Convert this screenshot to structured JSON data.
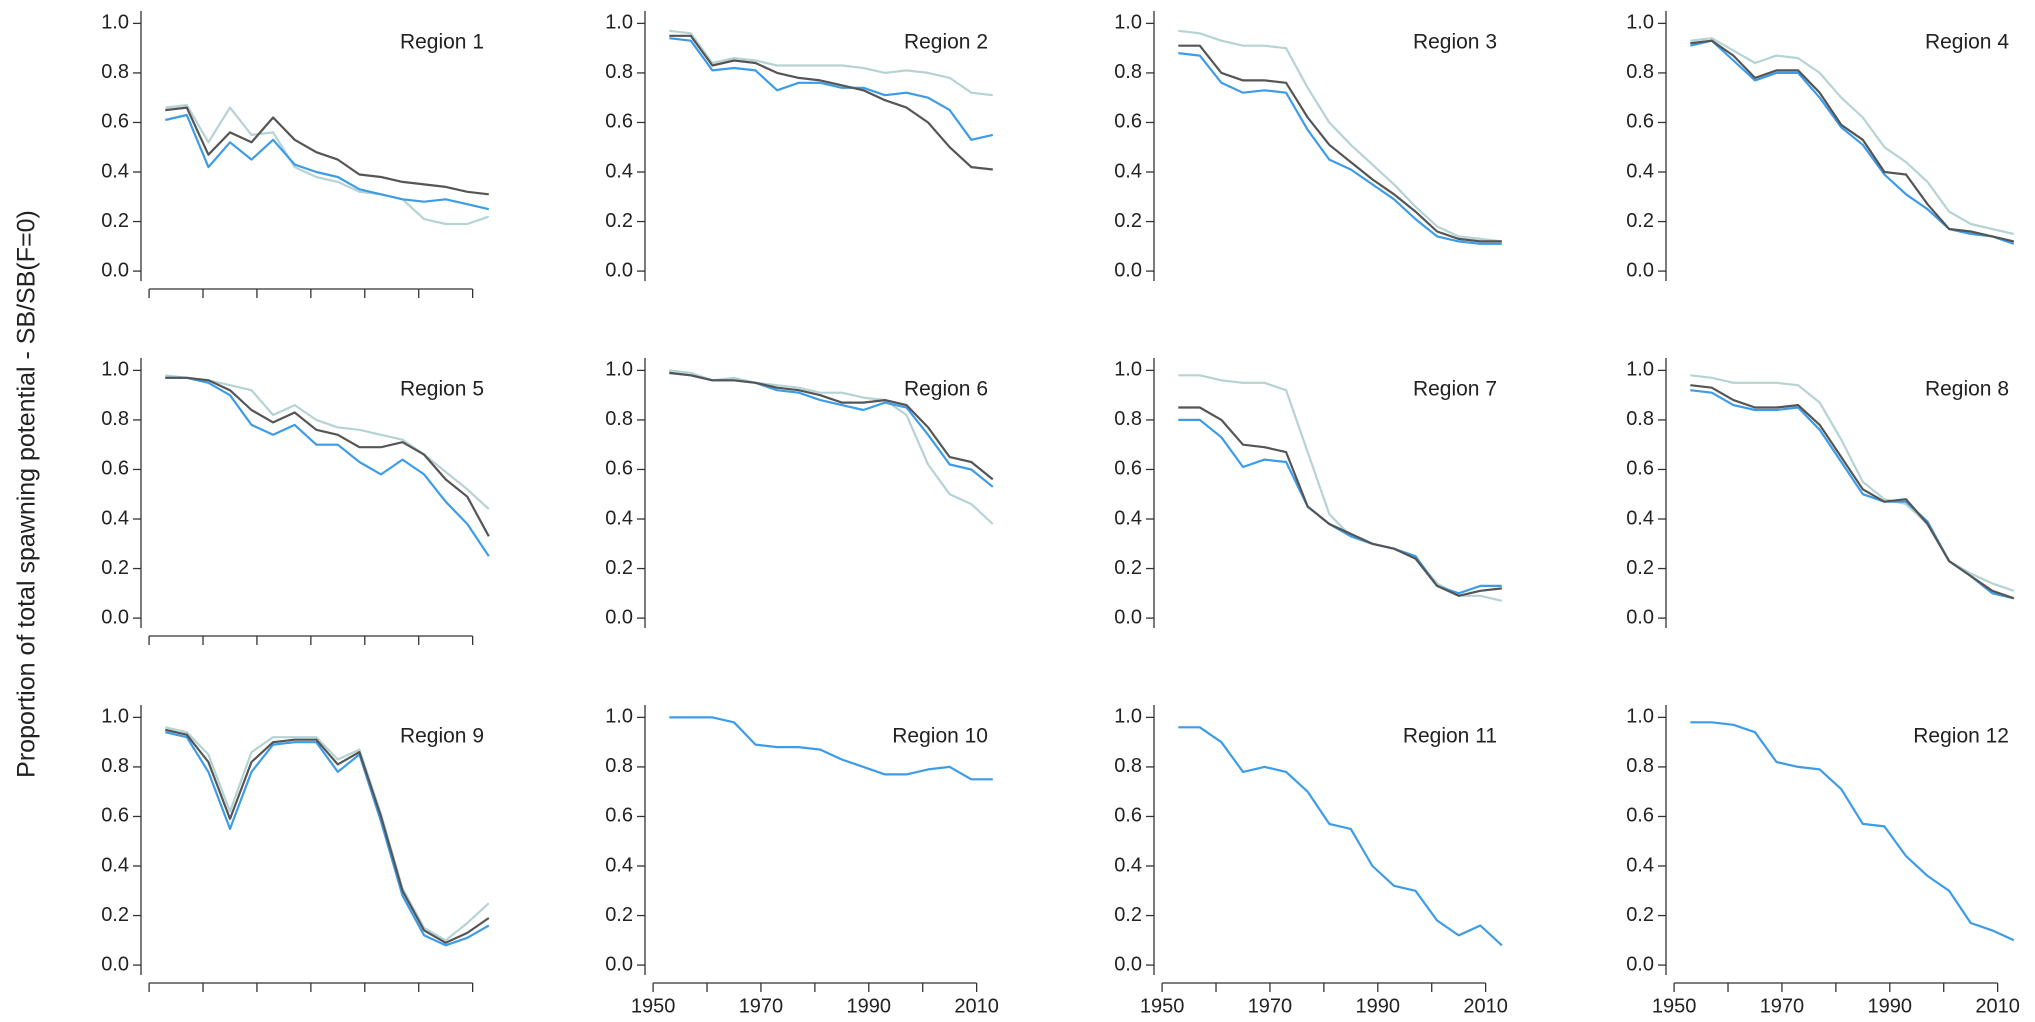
{
  "ylabel": "Proportion of total spawning potential - SB/SB(F=0)",
  "chart_data": [
    {
      "type": "line",
      "title": "Region 1",
      "x": [
        1953,
        1957,
        1961,
        1965,
        1969,
        1973,
        1977,
        1981,
        1985,
        1989,
        1993,
        1997,
        2001,
        2005,
        2009,
        2013
      ],
      "xlim": [
        1948.5,
        2016
      ],
      "ylim": [
        -0.04,
        1.05
      ],
      "yticks": [
        {
          "value": 0,
          "label": "0.0"
        },
        0.2,
        0.4,
        0.6,
        0.8,
        {
          "value": 1,
          "label": "1.0"
        }
      ],
      "xminor_ticks": [
        1950,
        1960,
        1970,
        1980,
        1990,
        2000,
        2010
      ],
      "series": [
        {
          "color": "#b6d3d3",
          "values": [
            0.66,
            0.67,
            0.52,
            0.66,
            0.55,
            0.56,
            0.42,
            0.38,
            0.36,
            0.32,
            0.31,
            0.29,
            0.21,
            0.19,
            0.19,
            0.22
          ]
        },
        {
          "color": "#3d9ce8",
          "values": [
            0.61,
            0.63,
            0.42,
            0.52,
            0.45,
            0.53,
            0.43,
            0.4,
            0.38,
            0.33,
            0.31,
            0.29,
            0.28,
            0.29,
            0.27,
            0.25
          ]
        },
        {
          "color": "#555555",
          "values": [
            0.65,
            0.66,
            0.47,
            0.56,
            0.52,
            0.62,
            0.53,
            0.48,
            0.45,
            0.39,
            0.38,
            0.36,
            0.35,
            0.34,
            0.32,
            0.31
          ]
        }
      ]
    },
    {
      "type": "line",
      "title": "Region 2",
      "x": [
        1953,
        1957,
        1961,
        1965,
        1969,
        1973,
        1977,
        1981,
        1985,
        1989,
        1993,
        1997,
        2001,
        2005,
        2009,
        2013
      ],
      "xlim": [
        1948.5,
        2016
      ],
      "ylim": [
        -0.04,
        1.05
      ],
      "yticks": [
        {
          "value": 0,
          "label": "0.0"
        },
        0.2,
        0.4,
        0.6,
        0.8,
        {
          "value": 1,
          "label": "1.0"
        }
      ],
      "series": [
        {
          "color": "#b6d3d3",
          "values": [
            0.97,
            0.96,
            0.84,
            0.86,
            0.85,
            0.83,
            0.83,
            0.83,
            0.83,
            0.82,
            0.8,
            0.81,
            0.8,
            0.78,
            0.72,
            0.71
          ]
        },
        {
          "color": "#3d9ce8",
          "values": [
            0.94,
            0.93,
            0.81,
            0.82,
            0.81,
            0.73,
            0.76,
            0.76,
            0.74,
            0.74,
            0.71,
            0.72,
            0.7,
            0.65,
            0.53,
            0.55
          ]
        },
        {
          "color": "#555555",
          "values": [
            0.95,
            0.95,
            0.83,
            0.85,
            0.84,
            0.8,
            0.78,
            0.77,
            0.75,
            0.73,
            0.69,
            0.66,
            0.6,
            0.5,
            0.42,
            0.41
          ]
        }
      ]
    },
    {
      "type": "line",
      "title": "Region 3",
      "x": [
        1953,
        1957,
        1961,
        1965,
        1969,
        1973,
        1977,
        1981,
        1985,
        1989,
        1993,
        1997,
        2001,
        2005,
        2009,
        2013
      ],
      "xlim": [
        1948.5,
        2016
      ],
      "ylim": [
        -0.04,
        1.05
      ],
      "yticks": [
        {
          "value": 0,
          "label": "0.0"
        },
        0.2,
        0.4,
        0.6,
        0.8,
        {
          "value": 1,
          "label": "1.0"
        }
      ],
      "series": [
        {
          "color": "#b6d3d3",
          "values": [
            0.97,
            0.96,
            0.93,
            0.91,
            0.91,
            0.9,
            0.74,
            0.6,
            0.51,
            0.43,
            0.35,
            0.26,
            0.18,
            0.14,
            0.13,
            0.12
          ]
        },
        {
          "color": "#3d9ce8",
          "values": [
            0.88,
            0.87,
            0.76,
            0.72,
            0.73,
            0.72,
            0.57,
            0.45,
            0.41,
            0.35,
            0.29,
            0.21,
            0.14,
            0.12,
            0.11,
            0.11
          ]
        },
        {
          "color": "#555555",
          "values": [
            0.91,
            0.91,
            0.8,
            0.77,
            0.77,
            0.76,
            0.62,
            0.51,
            0.44,
            0.37,
            0.31,
            0.24,
            0.16,
            0.13,
            0.12,
            0.12
          ]
        }
      ]
    },
    {
      "type": "line",
      "title": "Region 4",
      "x": [
        1953,
        1957,
        1961,
        1965,
        1969,
        1973,
        1977,
        1981,
        1985,
        1989,
        1993,
        1997,
        2001,
        2005,
        2009,
        2013
      ],
      "xlim": [
        1948.5,
        2016
      ],
      "ylim": [
        -0.04,
        1.05
      ],
      "yticks": [
        {
          "value": 0,
          "label": "0.0"
        },
        0.2,
        0.4,
        0.6,
        0.8,
        {
          "value": 1,
          "label": "1.0"
        }
      ],
      "series": [
        {
          "color": "#b6d3d3",
          "values": [
            0.93,
            0.94,
            0.89,
            0.84,
            0.87,
            0.86,
            0.8,
            0.7,
            0.62,
            0.5,
            0.44,
            0.36,
            0.24,
            0.19,
            0.17,
            0.15
          ]
        },
        {
          "color": "#3d9ce8",
          "values": [
            0.91,
            0.93,
            0.85,
            0.77,
            0.8,
            0.8,
            0.7,
            0.58,
            0.51,
            0.39,
            0.31,
            0.25,
            0.17,
            0.15,
            0.14,
            0.11
          ]
        },
        {
          "color": "#555555",
          "values": [
            0.92,
            0.93,
            0.87,
            0.78,
            0.81,
            0.81,
            0.72,
            0.59,
            0.53,
            0.4,
            0.39,
            0.27,
            0.17,
            0.16,
            0.14,
            0.12
          ]
        }
      ]
    },
    {
      "type": "line",
      "title": "Region 5",
      "x": [
        1953,
        1957,
        1961,
        1965,
        1969,
        1973,
        1977,
        1981,
        1985,
        1989,
        1993,
        1997,
        2001,
        2005,
        2009,
        2013
      ],
      "xlim": [
        1948.5,
        2016
      ],
      "ylim": [
        -0.04,
        1.05
      ],
      "yticks": [
        {
          "value": 0,
          "label": "0.0"
        },
        0.2,
        0.4,
        0.6,
        0.8,
        {
          "value": 1,
          "label": "1.0"
        }
      ],
      "xminor_ticks": [
        1950,
        1960,
        1970,
        1980,
        1990,
        2000,
        2010
      ],
      "series": [
        {
          "color": "#b6d3d3",
          "values": [
            0.98,
            0.97,
            0.96,
            0.94,
            0.92,
            0.82,
            0.86,
            0.8,
            0.77,
            0.76,
            0.74,
            0.72,
            0.66,
            0.59,
            0.52,
            0.44
          ]
        },
        {
          "color": "#3d9ce8",
          "values": [
            0.97,
            0.97,
            0.95,
            0.9,
            0.78,
            0.74,
            0.78,
            0.7,
            0.7,
            0.63,
            0.58,
            0.64,
            0.58,
            0.47,
            0.38,
            0.25
          ]
        },
        {
          "color": "#555555",
          "values": [
            0.97,
            0.97,
            0.96,
            0.92,
            0.84,
            0.79,
            0.83,
            0.76,
            0.74,
            0.69,
            0.69,
            0.71,
            0.66,
            0.56,
            0.49,
            0.33
          ]
        }
      ]
    },
    {
      "type": "line",
      "title": "Region 6",
      "x": [
        1953,
        1957,
        1961,
        1965,
        1969,
        1973,
        1977,
        1981,
        1985,
        1989,
        1993,
        1997,
        2001,
        2005,
        2009,
        2013
      ],
      "xlim": [
        1948.5,
        2016
      ],
      "ylim": [
        -0.04,
        1.05
      ],
      "yticks": [
        {
          "value": 0,
          "label": "0.0"
        },
        0.2,
        0.4,
        0.6,
        0.8,
        {
          "value": 1,
          "label": "1.0"
        }
      ],
      "series": [
        {
          "color": "#b6d3d3",
          "values": [
            1.0,
            0.99,
            0.96,
            0.97,
            0.95,
            0.94,
            0.93,
            0.91,
            0.91,
            0.89,
            0.88,
            0.82,
            0.62,
            0.5,
            0.46,
            0.38
          ]
        },
        {
          "color": "#3d9ce8",
          "values": [
            0.99,
            0.98,
            0.96,
            0.96,
            0.95,
            0.92,
            0.91,
            0.88,
            0.86,
            0.84,
            0.87,
            0.85,
            0.74,
            0.62,
            0.6,
            0.53
          ]
        },
        {
          "color": "#555555",
          "values": [
            0.99,
            0.98,
            0.96,
            0.96,
            0.95,
            0.93,
            0.92,
            0.9,
            0.87,
            0.87,
            0.88,
            0.86,
            0.77,
            0.65,
            0.63,
            0.56
          ]
        }
      ]
    },
    {
      "type": "line",
      "title": "Region 7",
      "x": [
        1953,
        1957,
        1961,
        1965,
        1969,
        1973,
        1977,
        1981,
        1985,
        1989,
        1993,
        1997,
        2001,
        2005,
        2009,
        2013
      ],
      "xlim": [
        1948.5,
        2016
      ],
      "ylim": [
        -0.04,
        1.05
      ],
      "yticks": [
        {
          "value": 0,
          "label": "0.0"
        },
        0.2,
        0.4,
        0.6,
        0.8,
        {
          "value": 1,
          "label": "1.0"
        }
      ],
      "series": [
        {
          "color": "#b6d3d3",
          "values": [
            0.98,
            0.98,
            0.96,
            0.95,
            0.95,
            0.92,
            0.67,
            0.42,
            0.33,
            0.3,
            0.28,
            0.24,
            0.14,
            0.09,
            0.09,
            0.07
          ]
        },
        {
          "color": "#3d9ce8",
          "values": [
            0.8,
            0.8,
            0.73,
            0.61,
            0.64,
            0.63,
            0.45,
            0.38,
            0.33,
            0.3,
            0.28,
            0.25,
            0.13,
            0.1,
            0.13,
            0.13
          ]
        },
        {
          "color": "#555555",
          "values": [
            0.85,
            0.85,
            0.8,
            0.7,
            0.69,
            0.67,
            0.45,
            0.38,
            0.34,
            0.3,
            0.28,
            0.24,
            0.13,
            0.09,
            0.11,
            0.12
          ]
        }
      ]
    },
    {
      "type": "line",
      "title": "Region 8",
      "x": [
        1953,
        1957,
        1961,
        1965,
        1969,
        1973,
        1977,
        1981,
        1985,
        1989,
        1993,
        1997,
        2001,
        2005,
        2009,
        2013
      ],
      "xlim": [
        1948.5,
        2016
      ],
      "ylim": [
        -0.04,
        1.05
      ],
      "yticks": [
        {
          "value": 0,
          "label": "0.0"
        },
        0.2,
        0.4,
        0.6,
        0.8,
        {
          "value": 1,
          "label": "1.0"
        }
      ],
      "series": [
        {
          "color": "#b6d3d3",
          "values": [
            0.98,
            0.97,
            0.95,
            0.95,
            0.95,
            0.94,
            0.87,
            0.72,
            0.55,
            0.48,
            0.46,
            0.38,
            0.23,
            0.18,
            0.14,
            0.11
          ]
        },
        {
          "color": "#3d9ce8",
          "values": [
            0.92,
            0.91,
            0.86,
            0.84,
            0.84,
            0.85,
            0.76,
            0.63,
            0.5,
            0.47,
            0.47,
            0.39,
            0.23,
            0.17,
            0.1,
            0.08
          ]
        },
        {
          "color": "#555555",
          "values": [
            0.94,
            0.93,
            0.88,
            0.85,
            0.85,
            0.86,
            0.78,
            0.65,
            0.52,
            0.47,
            0.48,
            0.38,
            0.23,
            0.17,
            0.11,
            0.08
          ]
        }
      ]
    },
    {
      "type": "line",
      "title": "Region 9",
      "x": [
        1953,
        1957,
        1961,
        1965,
        1969,
        1973,
        1977,
        1981,
        1985,
        1989,
        1993,
        1997,
        2001,
        2005,
        2009,
        2013
      ],
      "xlim": [
        1948.5,
        2016
      ],
      "ylim": [
        -0.04,
        1.05
      ],
      "yticks": [
        {
          "value": 0,
          "label": "0.0"
        },
        0.2,
        0.4,
        0.6,
        0.8,
        {
          "value": 1,
          "label": "1.0"
        }
      ],
      "xminor_ticks": [
        1950,
        1960,
        1970,
        1980,
        1990,
        2000,
        2010
      ],
      "series": [
        {
          "color": "#b6d3d3",
          "values": [
            0.96,
            0.94,
            0.85,
            0.62,
            0.86,
            0.92,
            0.92,
            0.92,
            0.83,
            0.87,
            0.61,
            0.31,
            0.15,
            0.1,
            0.17,
            0.25
          ]
        },
        {
          "color": "#3d9ce8",
          "values": [
            0.94,
            0.92,
            0.78,
            0.55,
            0.78,
            0.89,
            0.9,
            0.9,
            0.78,
            0.85,
            0.58,
            0.28,
            0.12,
            0.08,
            0.11,
            0.16
          ]
        },
        {
          "color": "#555555",
          "values": [
            0.95,
            0.93,
            0.82,
            0.59,
            0.82,
            0.9,
            0.91,
            0.91,
            0.81,
            0.86,
            0.6,
            0.3,
            0.14,
            0.09,
            0.13,
            0.19
          ]
        }
      ]
    },
    {
      "type": "line",
      "title": "Region 10",
      "x": [
        1953,
        1957,
        1961,
        1965,
        1969,
        1973,
        1977,
        1981,
        1985,
        1989,
        1993,
        1997,
        2001,
        2005,
        2009,
        2013
      ],
      "xlim": [
        1948.5,
        2016
      ],
      "ylim": [
        -0.04,
        1.05
      ],
      "yticks": [
        {
          "value": 0,
          "label": "0.0"
        },
        0.2,
        0.4,
        0.6,
        0.8,
        {
          "value": 1,
          "label": "1.0"
        }
      ],
      "xticks": [
        1950,
        1970,
        1990,
        2010
      ],
      "xminor_ticks": [
        1960,
        1980,
        2000
      ],
      "series": [
        {
          "color": "#3d9ce8",
          "values": [
            1.0,
            1.0,
            1.0,
            0.98,
            0.89,
            0.88,
            0.88,
            0.87,
            0.83,
            0.8,
            0.77,
            0.77,
            0.79,
            0.8,
            0.75,
            0.75
          ]
        }
      ]
    },
    {
      "type": "line",
      "title": "Region 11",
      "x": [
        1953,
        1957,
        1961,
        1965,
        1969,
        1973,
        1977,
        1981,
        1985,
        1989,
        1993,
        1997,
        2001,
        2005,
        2009,
        2013
      ],
      "xlim": [
        1948.5,
        2016
      ],
      "ylim": [
        -0.04,
        1.05
      ],
      "yticks": [
        {
          "value": 0,
          "label": "0.0"
        },
        0.2,
        0.4,
        0.6,
        0.8,
        {
          "value": 1,
          "label": "1.0"
        }
      ],
      "xticks": [
        1950,
        1970,
        1990,
        2010
      ],
      "xminor_ticks": [
        1960,
        1980,
        2000
      ],
      "series": [
        {
          "color": "#3d9ce8",
          "values": [
            0.96,
            0.96,
            0.9,
            0.78,
            0.8,
            0.78,
            0.7,
            0.57,
            0.55,
            0.4,
            0.32,
            0.3,
            0.18,
            0.12,
            0.16,
            0.08
          ]
        }
      ]
    },
    {
      "type": "line",
      "title": "Region 12",
      "x": [
        1953,
        1957,
        1961,
        1965,
        1969,
        1973,
        1977,
        1981,
        1985,
        1989,
        1993,
        1997,
        2001,
        2005,
        2009,
        2013
      ],
      "xlim": [
        1948.5,
        2016
      ],
      "ylim": [
        -0.04,
        1.05
      ],
      "yticks": [
        {
          "value": 0,
          "label": "0.0"
        },
        0.2,
        0.4,
        0.6,
        0.8,
        {
          "value": 1,
          "label": "1.0"
        }
      ],
      "xticks": [
        1950,
        1970,
        1990,
        2010
      ],
      "xminor_ticks": [
        1960,
        1980,
        2000
      ],
      "series": [
        {
          "color": "#3d9ce8",
          "values": [
            0.98,
            0.98,
            0.97,
            0.94,
            0.82,
            0.8,
            0.79,
            0.71,
            0.57,
            0.56,
            0.44,
            0.36,
            0.3,
            0.17,
            0.14,
            0.1
          ]
        }
      ]
    }
  ]
}
